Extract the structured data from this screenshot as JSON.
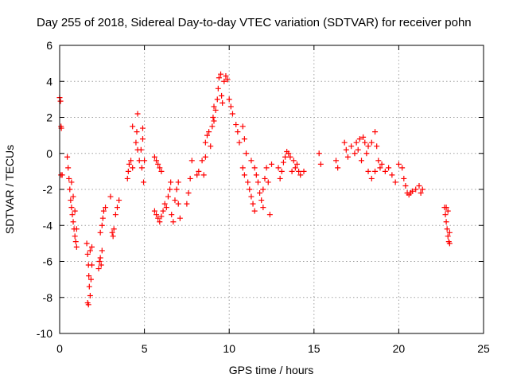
{
  "chart_data": {
    "type": "scatter",
    "title": "Day 255 of 2018, Sidereal Day-to-day VTEC variation (SDTVAR) for receiver pohn",
    "xlabel": "GPS time / hours",
    "ylabel": "SDTVAR / TECUs",
    "xlim": [
      0,
      25
    ],
    "ylim": [
      -10,
      6
    ],
    "grid": true,
    "marker": "+",
    "color": "#ff0000",
    "x_ticks": [
      0,
      5,
      10,
      15,
      20,
      25
    ],
    "y_ticks": [
      -10,
      -8,
      -6,
      -4,
      -2,
      0,
      2,
      4,
      6
    ],
    "x_tick_labels": [
      "0",
      "5",
      "10",
      "15",
      "20",
      "25"
    ],
    "y_tick_labels": [
      "-10",
      "-8",
      "-6",
      "-4",
      "-2",
      "0",
      "2",
      "4",
      "6"
    ],
    "series": [
      {
        "name": "pohn",
        "points": [
          [
            0.0,
            3.1
          ],
          [
            0.05,
            2.9
          ],
          [
            0.08,
            1.5
          ],
          [
            0.1,
            1.4
          ],
          [
            0.08,
            -1.2
          ],
          [
            0.15,
            -1.2
          ],
          [
            0.45,
            -0.2
          ],
          [
            0.5,
            -0.8
          ],
          [
            0.55,
            -1.4
          ],
          [
            0.6,
            -2.0
          ],
          [
            0.65,
            -2.6
          ],
          [
            0.7,
            -3.0
          ],
          [
            0.75,
            -3.4
          ],
          [
            0.8,
            -3.8
          ],
          [
            0.85,
            -4.2
          ],
          [
            0.9,
            -4.6
          ],
          [
            0.95,
            -4.9
          ],
          [
            1.0,
            -5.2
          ],
          [
            0.7,
            -1.6
          ],
          [
            0.8,
            -2.4
          ],
          [
            0.9,
            -3.2
          ],
          [
            1.0,
            -4.2
          ],
          [
            1.6,
            -5.0
          ],
          [
            1.65,
            -5.6
          ],
          [
            1.7,
            -6.2
          ],
          [
            1.72,
            -6.8
          ],
          [
            1.75,
            -7.4
          ],
          [
            1.8,
            -7.9
          ],
          [
            1.65,
            -8.3
          ],
          [
            1.7,
            -8.4
          ],
          [
            1.85,
            -7.0
          ],
          [
            1.9,
            -6.2
          ],
          [
            1.9,
            -5.2
          ],
          [
            1.8,
            -5.4
          ],
          [
            2.3,
            -6.4
          ],
          [
            2.35,
            -6.0
          ],
          [
            2.4,
            -5.8
          ],
          [
            2.5,
            -5.4
          ],
          [
            2.45,
            -6.2
          ],
          [
            2.4,
            -4.4
          ],
          [
            2.5,
            -4.0
          ],
          [
            2.55,
            -3.6
          ],
          [
            2.6,
            -3.2
          ],
          [
            2.7,
            -3.0
          ],
          [
            3.0,
            -2.4
          ],
          [
            3.1,
            -4.4
          ],
          [
            3.15,
            -4.6
          ],
          [
            3.2,
            -4.2
          ],
          [
            3.3,
            -3.4
          ],
          [
            3.4,
            -3.0
          ],
          [
            3.5,
            -2.6
          ],
          [
            4.0,
            -1.4
          ],
          [
            4.05,
            -1.0
          ],
          [
            4.1,
            -0.6
          ],
          [
            4.2,
            -0.4
          ],
          [
            4.3,
            -0.8
          ],
          [
            4.3,
            1.5
          ],
          [
            4.5,
            0.6
          ],
          [
            4.6,
            0.2
          ],
          [
            4.6,
            2.2
          ],
          [
            4.55,
            1.2
          ],
          [
            4.7,
            -0.4
          ],
          [
            4.8,
            0.2
          ],
          [
            4.85,
            -0.8
          ],
          [
            4.9,
            0.8
          ],
          [
            4.9,
            1.4
          ],
          [
            4.95,
            -1.6
          ],
          [
            5.0,
            -0.4
          ],
          [
            5.6,
            -0.2
          ],
          [
            5.7,
            -0.4
          ],
          [
            5.8,
            -0.6
          ],
          [
            5.9,
            -0.8
          ],
          [
            6.0,
            -1.0
          ],
          [
            5.6,
            -3.2
          ],
          [
            5.7,
            -3.4
          ],
          [
            5.8,
            -3.6
          ],
          [
            5.9,
            -3.8
          ],
          [
            6.0,
            -3.5
          ],
          [
            6.1,
            -3.2
          ],
          [
            6.2,
            -2.8
          ],
          [
            6.3,
            -3.0
          ],
          [
            6.4,
            -2.4
          ],
          [
            6.5,
            -2.0
          ],
          [
            6.55,
            -1.6
          ],
          [
            6.6,
            -3.4
          ],
          [
            6.7,
            -3.8
          ],
          [
            6.8,
            -2.6
          ],
          [
            6.9,
            -2.0
          ],
          [
            7.0,
            -2.8
          ],
          [
            7.1,
            -3.6
          ],
          [
            7.0,
            -1.6
          ],
          [
            7.5,
            -2.8
          ],
          [
            7.6,
            -2.2
          ],
          [
            7.7,
            -1.4
          ],
          [
            7.8,
            -0.4
          ],
          [
            8.1,
            -1.2
          ],
          [
            8.2,
            -1.0
          ],
          [
            8.4,
            -0.4
          ],
          [
            8.5,
            -1.2
          ],
          [
            8.6,
            -0.2
          ],
          [
            8.6,
            0.6
          ],
          [
            8.7,
            1.0
          ],
          [
            8.8,
            1.2
          ],
          [
            8.9,
            0.4
          ],
          [
            9.0,
            1.5
          ],
          [
            9.05,
            2.0
          ],
          [
            9.1,
            2.6
          ],
          [
            9.1,
            1.8
          ],
          [
            9.2,
            2.4
          ],
          [
            9.3,
            3.0
          ],
          [
            9.35,
            3.6
          ],
          [
            9.4,
            4.2
          ],
          [
            9.5,
            4.4
          ],
          [
            9.55,
            3.2
          ],
          [
            9.6,
            2.8
          ],
          [
            9.7,
            4.0
          ],
          [
            9.8,
            4.3
          ],
          [
            9.9,
            4.1
          ],
          [
            10.0,
            3.0
          ],
          [
            10.1,
            2.6
          ],
          [
            10.2,
            2.2
          ],
          [
            10.4,
            1.6
          ],
          [
            10.5,
            1.2
          ],
          [
            10.6,
            0.6
          ],
          [
            10.8,
            1.5
          ],
          [
            10.9,
            0.8
          ],
          [
            11.0,
            0.0
          ],
          [
            10.8,
            -0.8
          ],
          [
            10.9,
            -1.2
          ],
          [
            11.1,
            -1.6
          ],
          [
            11.2,
            -2.0
          ],
          [
            11.3,
            -2.4
          ],
          [
            11.4,
            -2.8
          ],
          [
            11.5,
            -3.2
          ],
          [
            11.3,
            -0.4
          ],
          [
            11.5,
            -0.8
          ],
          [
            11.6,
            -1.2
          ],
          [
            11.7,
            -1.6
          ],
          [
            11.8,
            -2.2
          ],
          [
            11.9,
            -2.6
          ],
          [
            12.0,
            -2.0
          ],
          [
            12.1,
            -1.4
          ],
          [
            12.2,
            -0.8
          ],
          [
            12.0,
            -3.0
          ],
          [
            12.4,
            -3.4
          ],
          [
            12.5,
            -0.6
          ],
          [
            12.3,
            -1.6
          ],
          [
            12.9,
            -0.8
          ],
          [
            13.0,
            -1.4
          ],
          [
            13.1,
            -1.0
          ],
          [
            13.2,
            -0.5
          ],
          [
            13.3,
            -0.2
          ],
          [
            13.4,
            0.1
          ],
          [
            13.5,
            0.0
          ],
          [
            13.6,
            -0.2
          ],
          [
            13.8,
            -0.4
          ],
          [
            14.0,
            -0.6
          ],
          [
            14.1,
            -1.0
          ],
          [
            14.2,
            -1.2
          ],
          [
            14.4,
            -1.0
          ],
          [
            13.7,
            -1.0
          ],
          [
            13.9,
            -0.8
          ],
          [
            15.3,
            0.0
          ],
          [
            15.4,
            -0.6
          ],
          [
            16.3,
            -0.4
          ],
          [
            16.4,
            -0.8
          ],
          [
            16.8,
            0.6
          ],
          [
            16.9,
            0.2
          ],
          [
            17.0,
            -0.2
          ],
          [
            17.2,
            0.4
          ],
          [
            17.4,
            0.0
          ],
          [
            17.5,
            0.6
          ],
          [
            17.6,
            0.2
          ],
          [
            17.7,
            0.8
          ],
          [
            17.8,
            -0.4
          ],
          [
            17.9,
            0.9
          ],
          [
            18.0,
            0.6
          ],
          [
            18.1,
            0.0
          ],
          [
            18.2,
            0.4
          ],
          [
            18.4,
            0.6
          ],
          [
            18.6,
            1.2
          ],
          [
            18.7,
            0.4
          ],
          [
            18.8,
            -0.4
          ],
          [
            18.9,
            -0.8
          ],
          [
            18.6,
            -1.0
          ],
          [
            18.4,
            -1.4
          ],
          [
            18.2,
            -1.0
          ],
          [
            19.0,
            -0.6
          ],
          [
            19.2,
            -1.0
          ],
          [
            19.4,
            -0.8
          ],
          [
            19.6,
            -1.2
          ],
          [
            19.8,
            -1.6
          ],
          [
            20.0,
            -0.6
          ],
          [
            20.2,
            -0.8
          ],
          [
            20.3,
            -1.4
          ],
          [
            20.4,
            -1.8
          ],
          [
            20.5,
            -2.2
          ],
          [
            20.6,
            -2.3
          ],
          [
            20.8,
            -2.1
          ],
          [
            21.0,
            -2.0
          ],
          [
            21.2,
            -1.8
          ],
          [
            21.3,
            -2.2
          ],
          [
            21.4,
            -2.0
          ],
          [
            20.7,
            -2.2
          ],
          [
            22.7,
            -3.0
          ],
          [
            22.75,
            -3.4
          ],
          [
            22.8,
            -3.8
          ],
          [
            22.85,
            -4.2
          ],
          [
            22.9,
            -4.6
          ],
          [
            22.95,
            -4.9
          ],
          [
            23.0,
            -5.0
          ],
          [
            22.8,
            -3.0
          ],
          [
            22.9,
            -3.2
          ],
          [
            23.0,
            -4.4
          ]
        ]
      }
    ]
  }
}
